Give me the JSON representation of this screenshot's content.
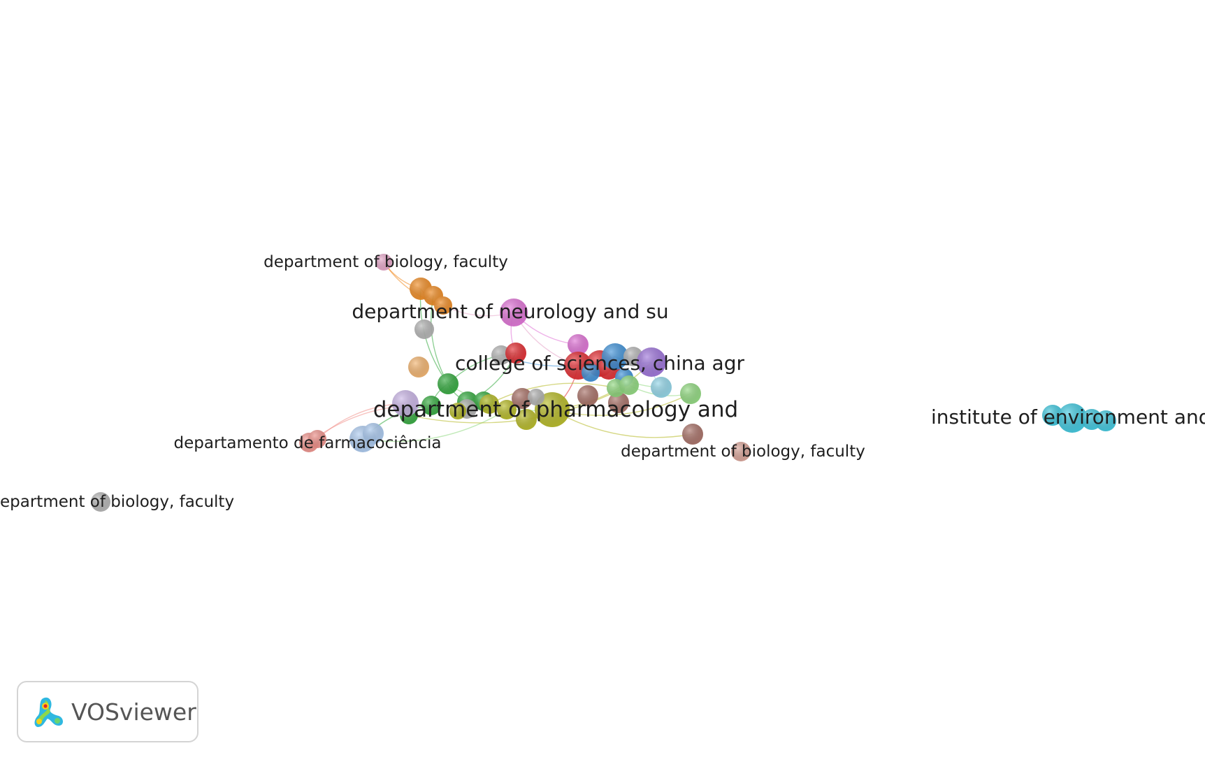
{
  "labels": {
    "biology_top": "department of biology, faculty",
    "neurology": "department of neurology and su",
    "sciences": "college of sciences, china agr",
    "pharmacology": "department of pharmacology and",
    "farmaco": "departamento de farmacociência",
    "biology_mid": "department of biology, faculty",
    "biology_left": "epartment of biology, faculty",
    "environment": "institute of environment and e"
  },
  "brand": {
    "name": "VOSviewer"
  },
  "colors": {
    "yellow": "#b5b820",
    "red": "#e3262b",
    "blue": "#3a8fd8",
    "purple": "#9a6fd9",
    "green": "#2fa83a",
    "lightgreen": "#8ed97d",
    "orange": "#f0891d",
    "lightorange": "#f3b26a",
    "pink": "#e06fd6",
    "lightpink": "#e6a4c8",
    "brown": "#a66d63",
    "lightbrown": "#d9a195",
    "grey": "#b3b3b3",
    "cyan": "#38c7de",
    "lightblue": "#a9c9f0",
    "lavender": "#c9b3e6",
    "salmon": "#f0908a",
    "skyblue": "#8fd5e8"
  }
}
